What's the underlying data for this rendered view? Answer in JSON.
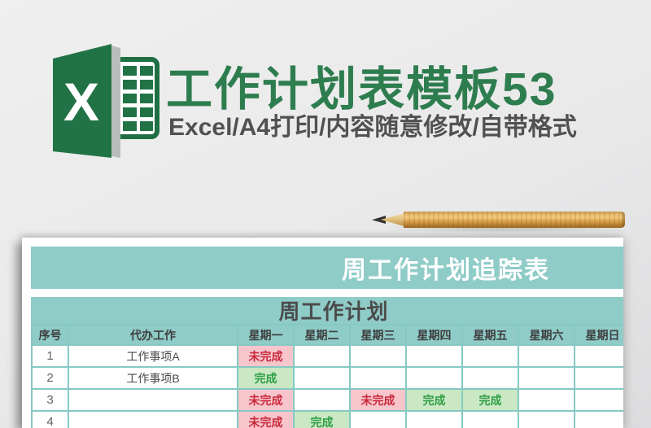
{
  "branding": {
    "logo_letter": "X",
    "title": "工作计划表模板53",
    "subtitle": "Excel/A4打印/内容随意修改/自带格式",
    "title_color": "#2e7d4f",
    "excel_green": "#217346"
  },
  "sheet": {
    "main_title": "周工作计划追踪表",
    "section_title": "周工作计划",
    "columns": [
      "序号",
      "代办工作",
      "星期一",
      "星期二",
      "星期三",
      "星期四",
      "星期五",
      "星期六",
      "星期日"
    ],
    "rows": [
      {
        "num": "1",
        "task": "工作事项A",
        "days": [
          "未完成",
          "",
          "",
          "",
          "",
          "",
          ""
        ]
      },
      {
        "num": "2",
        "task": "工作事项B",
        "days": [
          "完成",
          "",
          "",
          "",
          "",
          "",
          ""
        ]
      },
      {
        "num": "3",
        "task": "",
        "days": [
          "未完成",
          "",
          "未完成",
          "完成",
          "完成",
          "",
          ""
        ]
      },
      {
        "num": "4",
        "task": "",
        "days": [
          "未完成",
          "完成",
          "",
          "",
          "",
          "",
          ""
        ]
      }
    ],
    "status_styles": {
      "未完成": {
        "bg": "#f8c5cc",
        "color": "#c9293c"
      },
      "完成": {
        "bg": "#c9e8c3",
        "color": "#2f9e45"
      }
    },
    "colors": {
      "band": "#8fccc8",
      "border": "#85c9c3"
    }
  }
}
